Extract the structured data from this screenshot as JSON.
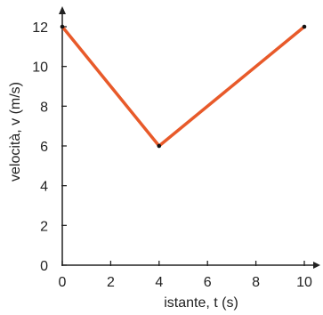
{
  "chart_data": {
    "type": "line",
    "title": "",
    "xlabel": "istante, t (s)",
    "ylabel": "velocità, v (m/s)",
    "xlim": [
      0,
      10.5
    ],
    "ylim": [
      0,
      12.5
    ],
    "x_ticks": [
      0,
      2,
      4,
      6,
      8,
      10
    ],
    "y_ticks": [
      0,
      2,
      4,
      6,
      8,
      10,
      12
    ],
    "grid": false,
    "series": [
      {
        "x": [
          0,
          4,
          10
        ],
        "y": [
          12,
          6,
          12
        ],
        "color": "#e85a2a"
      }
    ]
  }
}
